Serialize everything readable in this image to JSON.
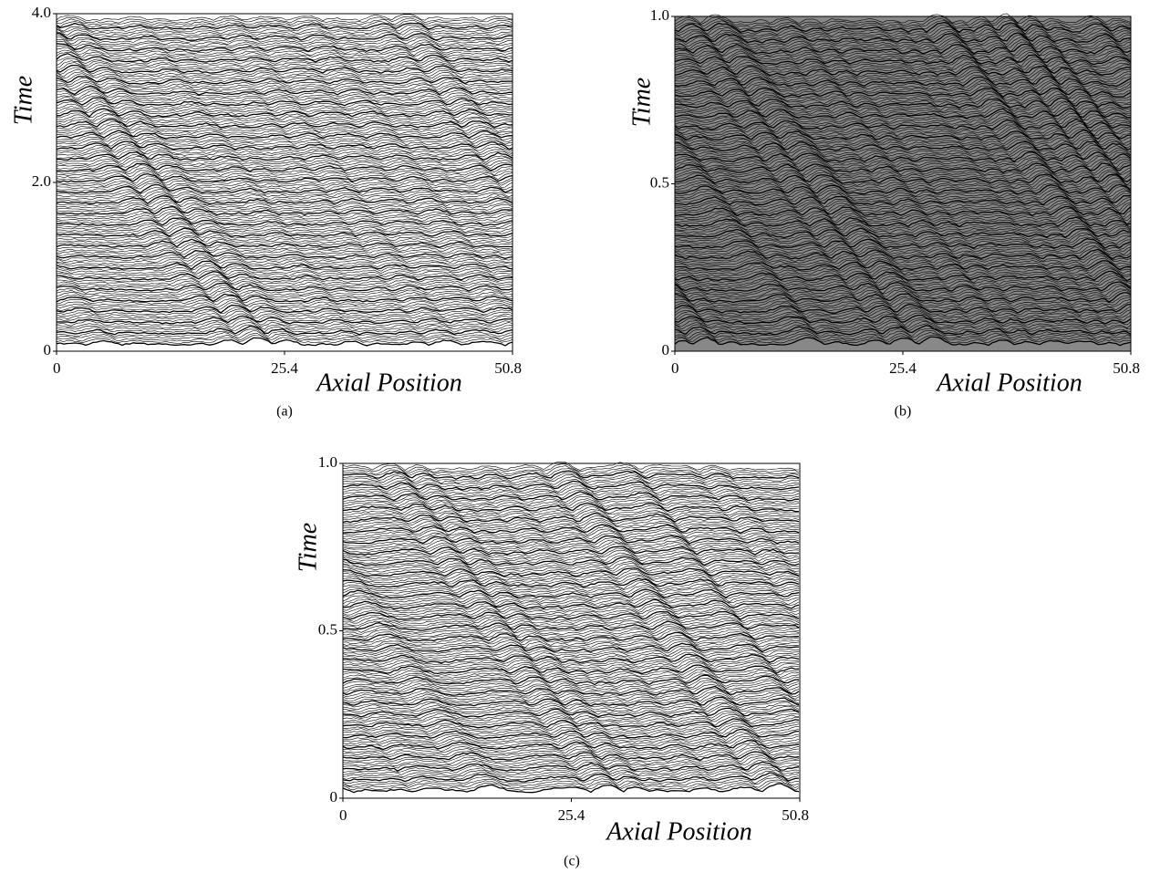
{
  "chart_data": [
    {
      "type": "waterfall",
      "panel_label": "(a)",
      "xlabel": "Axial Position",
      "ylabel": "Time",
      "xlim": [
        0,
        50.8
      ],
      "xticks": [
        0,
        25.4,
        50.8
      ],
      "ylim": [
        0,
        4
      ],
      "yticks": [
        0,
        {
          "value": 2,
          "label": "2.0"
        },
        {
          "value": 4,
          "label": "4.0"
        }
      ]
    },
    {
      "type": "waterfall",
      "panel_label": "(b)",
      "xlabel": "Axial Position",
      "ylabel": "Time",
      "xlim": [
        0,
        50.8
      ],
      "xticks": [
        0,
        25.4,
        50.8
      ],
      "ylim": [
        0,
        1
      ],
      "yticks": [
        0,
        0.5,
        {
          "value": 1,
          "label": "1.0"
        }
      ]
    },
    {
      "type": "waterfall",
      "panel_label": "(c)",
      "xlabel": "Axial Position",
      "ylabel": "Time",
      "xlim": [
        0,
        50.8
      ],
      "xticks": [
        0,
        25.4,
        50.8
      ],
      "ylim": [
        0,
        1
      ],
      "yticks": [
        0,
        0.5,
        {
          "value": 1,
          "label": "1.0"
        }
      ]
    }
  ]
}
